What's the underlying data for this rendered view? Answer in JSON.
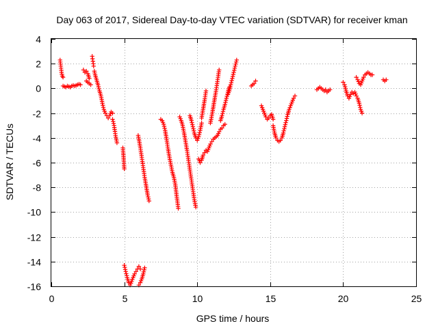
{
  "chart_data": {
    "type": "scatter",
    "title": "Day 063 of 2017, Sidereal Day-to-day VTEC variation (SDTVAR) for receiver kman",
    "xlabel": "GPS time / hours",
    "ylabel": "SDTVAR / TECUs",
    "xlim": [
      0,
      25
    ],
    "ylim": [
      -16,
      4
    ],
    "xticks": [
      "0",
      "5",
      "10",
      "15",
      "20",
      "25"
    ],
    "yticks": [
      "4",
      "2",
      "0",
      "-2",
      "-4",
      "-6",
      "-8",
      "-10",
      "-12",
      "-14",
      "-16"
    ],
    "grid": true,
    "marker": "+",
    "color": "#ff0000",
    "segments": [
      {
        "x": [
          0.6,
          0.65,
          0.7,
          0.75,
          0.8
        ],
        "y": [
          2.3,
          1.8,
          1.3,
          1.0,
          0.9
        ]
      },
      {
        "x": [
          0.8,
          0.9,
          1.0,
          1.1,
          1.2,
          1.3,
          1.4,
          1.5,
          1.6,
          1.7,
          1.8,
          1.9,
          2.0
        ],
        "y": [
          0.2,
          0.15,
          0.1,
          0.2,
          0.15,
          0.1,
          0.2,
          0.25,
          0.2,
          0.25,
          0.3,
          0.35,
          0.3
        ]
      },
      {
        "x": [
          2.2,
          2.3,
          2.4,
          2.5,
          2.6
        ],
        "y": [
          1.5,
          1.3,
          1.4,
          1.2,
          0.8
        ]
      },
      {
        "x": [
          2.4,
          2.5,
          2.6,
          2.7
        ],
        "y": [
          0.6,
          0.5,
          0.4,
          0.3
        ]
      },
      {
        "x": [
          2.8,
          2.85,
          2.9
        ],
        "y": [
          2.6,
          2.2,
          1.8
        ]
      },
      {
        "x": [
          2.95,
          3.0,
          3.1,
          3.2,
          3.3,
          3.4,
          3.5,
          3.6,
          3.7,
          3.8,
          3.9,
          4.0,
          4.1,
          4.2
        ],
        "y": [
          1.4,
          1.1,
          0.7,
          0.3,
          -0.2,
          -0.6,
          -1.2,
          -1.7,
          -2.0,
          -2.2,
          -2.4,
          -2.2,
          -1.9,
          -2.0
        ]
      },
      {
        "x": [
          4.2,
          4.3,
          4.4,
          4.5
        ],
        "y": [
          -2.5,
          -3.0,
          -3.8,
          -4.4
        ]
      },
      {
        "x": [
          4.9,
          4.95,
          5.0
        ],
        "y": [
          -4.8,
          -5.5,
          -6.5
        ]
      },
      {
        "x": [
          5.0,
          5.1,
          5.2,
          5.3,
          5.4,
          5.5,
          5.6,
          5.7,
          5.8,
          5.9,
          6.0,
          6.1
        ],
        "y": [
          -14.3,
          -14.8,
          -15.3,
          -15.7,
          -15.9,
          -15.6,
          -15.3,
          -15.0,
          -14.8,
          -14.6,
          -14.4,
          -14.6
        ]
      },
      {
        "x": [
          6.0,
          6.1,
          6.2,
          6.3,
          6.4
        ],
        "y": [
          -15.9,
          -15.7,
          -15.4,
          -15.0,
          -14.5
        ]
      },
      {
        "x": [
          5.95,
          6.0,
          6.1,
          6.2,
          6.3,
          6.4,
          6.5,
          6.6,
          6.7
        ],
        "y": [
          -3.8,
          -4.1,
          -4.8,
          -5.6,
          -6.4,
          -7.2,
          -7.9,
          -8.6,
          -9.1
        ]
      },
      {
        "x": [
          7.5,
          7.6,
          7.7,
          7.8,
          7.9,
          8.0,
          8.1,
          8.2,
          8.3,
          8.4,
          8.5,
          8.6,
          8.7
        ],
        "y": [
          -2.5,
          -2.6,
          -2.9,
          -3.4,
          -4.1,
          -4.9,
          -5.6,
          -6.2,
          -6.8,
          -7.2,
          -7.8,
          -8.8,
          -9.7
        ]
      },
      {
        "x": [
          8.8,
          8.9,
          9.0,
          9.1,
          9.2,
          9.3,
          9.4,
          9.5,
          9.6,
          9.7,
          9.8,
          9.9
        ],
        "y": [
          -2.3,
          -2.6,
          -3.0,
          -3.6,
          -4.3,
          -5.0,
          -5.8,
          -6.6,
          -7.4,
          -8.2,
          -9.0,
          -9.6
        ]
      },
      {
        "x": [
          9.5,
          9.6,
          9.7,
          9.8,
          9.9,
          10.0,
          10.1,
          10.2,
          10.3
        ],
        "y": [
          -2.2,
          -2.6,
          -3.1,
          -3.6,
          -4.0,
          -4.2,
          -3.9,
          -3.4,
          -2.8
        ]
      },
      {
        "x": [
          10.3,
          10.4,
          10.5,
          10.6
        ],
        "y": [
          -2.4,
          -1.7,
          -1.0,
          -0.2
        ]
      },
      {
        "x": [
          10.1,
          10.2,
          10.3,
          10.4,
          10.5,
          10.6,
          10.7,
          10.8,
          10.9,
          11.0,
          11.1,
          11.2,
          11.3,
          11.4,
          11.5,
          11.6,
          11.7,
          11.8,
          11.9
        ],
        "y": [
          -5.7,
          -6.0,
          -5.8,
          -5.4,
          -5.2,
          -5.0,
          -5.1,
          -4.8,
          -4.5,
          -4.3,
          -4.1,
          -4.0,
          -3.9,
          -3.8,
          -3.5,
          -3.3,
          -3.2,
          -3.0,
          -2.9
        ]
      },
      {
        "x": [
          10.9,
          11.0,
          11.1,
          11.2,
          11.3,
          11.4,
          11.5
        ],
        "y": [
          -2.8,
          -2.2,
          -1.5,
          -0.8,
          -0.1,
          0.7,
          1.5
        ]
      },
      {
        "x": [
          11.6,
          11.7,
          11.8,
          11.9,
          12.0,
          12.1,
          12.2
        ],
        "y": [
          -2.6,
          -2.2,
          -1.7,
          -1.3,
          -0.8,
          -0.3,
          0.1
        ]
      },
      {
        "x": [
          12.1,
          12.2,
          12.3,
          12.4,
          12.5,
          12.6,
          12.7
        ],
        "y": [
          -0.5,
          -0.2,
          0.3,
          0.8,
          1.3,
          1.8,
          2.3
        ]
      },
      {
        "x": [
          13.7,
          13.8,
          13.9,
          14.0
        ],
        "y": [
          0.2,
          0.3,
          0.4,
          0.6
        ]
      },
      {
        "x": [
          14.4,
          14.5,
          14.6,
          14.7,
          14.8,
          14.9,
          15.0,
          15.1,
          15.2
        ],
        "y": [
          -1.4,
          -1.7,
          -2.0,
          -2.3,
          -2.5,
          -2.4,
          -2.2,
          -2.1,
          -2.5
        ]
      },
      {
        "x": [
          15.2,
          15.3,
          15.4,
          15.5,
          15.6,
          15.7,
          15.8,
          15.9,
          16.0,
          16.1,
          16.2,
          16.3,
          16.4,
          16.5,
          16.6,
          16.7
        ],
        "y": [
          -3.0,
          -3.6,
          -4.0,
          -4.2,
          -4.3,
          -4.2,
          -4.0,
          -3.6,
          -3.1,
          -2.6,
          -2.1,
          -1.7,
          -1.4,
          -1.1,
          -0.8,
          -0.6
        ]
      },
      {
        "x": [
          18.2,
          18.3,
          18.4,
          18.5,
          18.6,
          18.7,
          18.8,
          18.9,
          19.0,
          19.1
        ],
        "y": [
          -0.1,
          0.0,
          0.1,
          0.0,
          -0.1,
          -0.2,
          -0.1,
          -0.3,
          -0.2,
          -0.1
        ]
      },
      {
        "x": [
          20.0,
          20.1,
          20.2,
          20.3,
          20.4,
          20.5,
          20.6,
          20.7,
          20.8,
          20.9,
          21.0,
          21.1,
          21.2,
          21.3
        ],
        "y": [
          0.5,
          0.3,
          -0.2,
          -0.6,
          -0.8,
          -0.5,
          -0.3,
          -0.4,
          -0.3,
          -0.6,
          -0.8,
          -1.2,
          -1.7,
          -2.0
        ]
      },
      {
        "x": [
          20.9,
          21.0,
          21.1
        ],
        "y": [
          0.9,
          0.7,
          0.4
        ]
      },
      {
        "x": [
          21.2,
          21.3,
          21.4,
          21.5,
          21.6,
          21.7,
          21.8,
          21.9,
          22.0
        ],
        "y": [
          0.3,
          0.6,
          0.9,
          1.1,
          1.2,
          1.3,
          1.2,
          1.1,
          1.1
        ]
      },
      {
        "x": [
          22.75,
          22.85,
          22.95
        ],
        "y": [
          0.7,
          0.6,
          0.7
        ]
      }
    ]
  }
}
